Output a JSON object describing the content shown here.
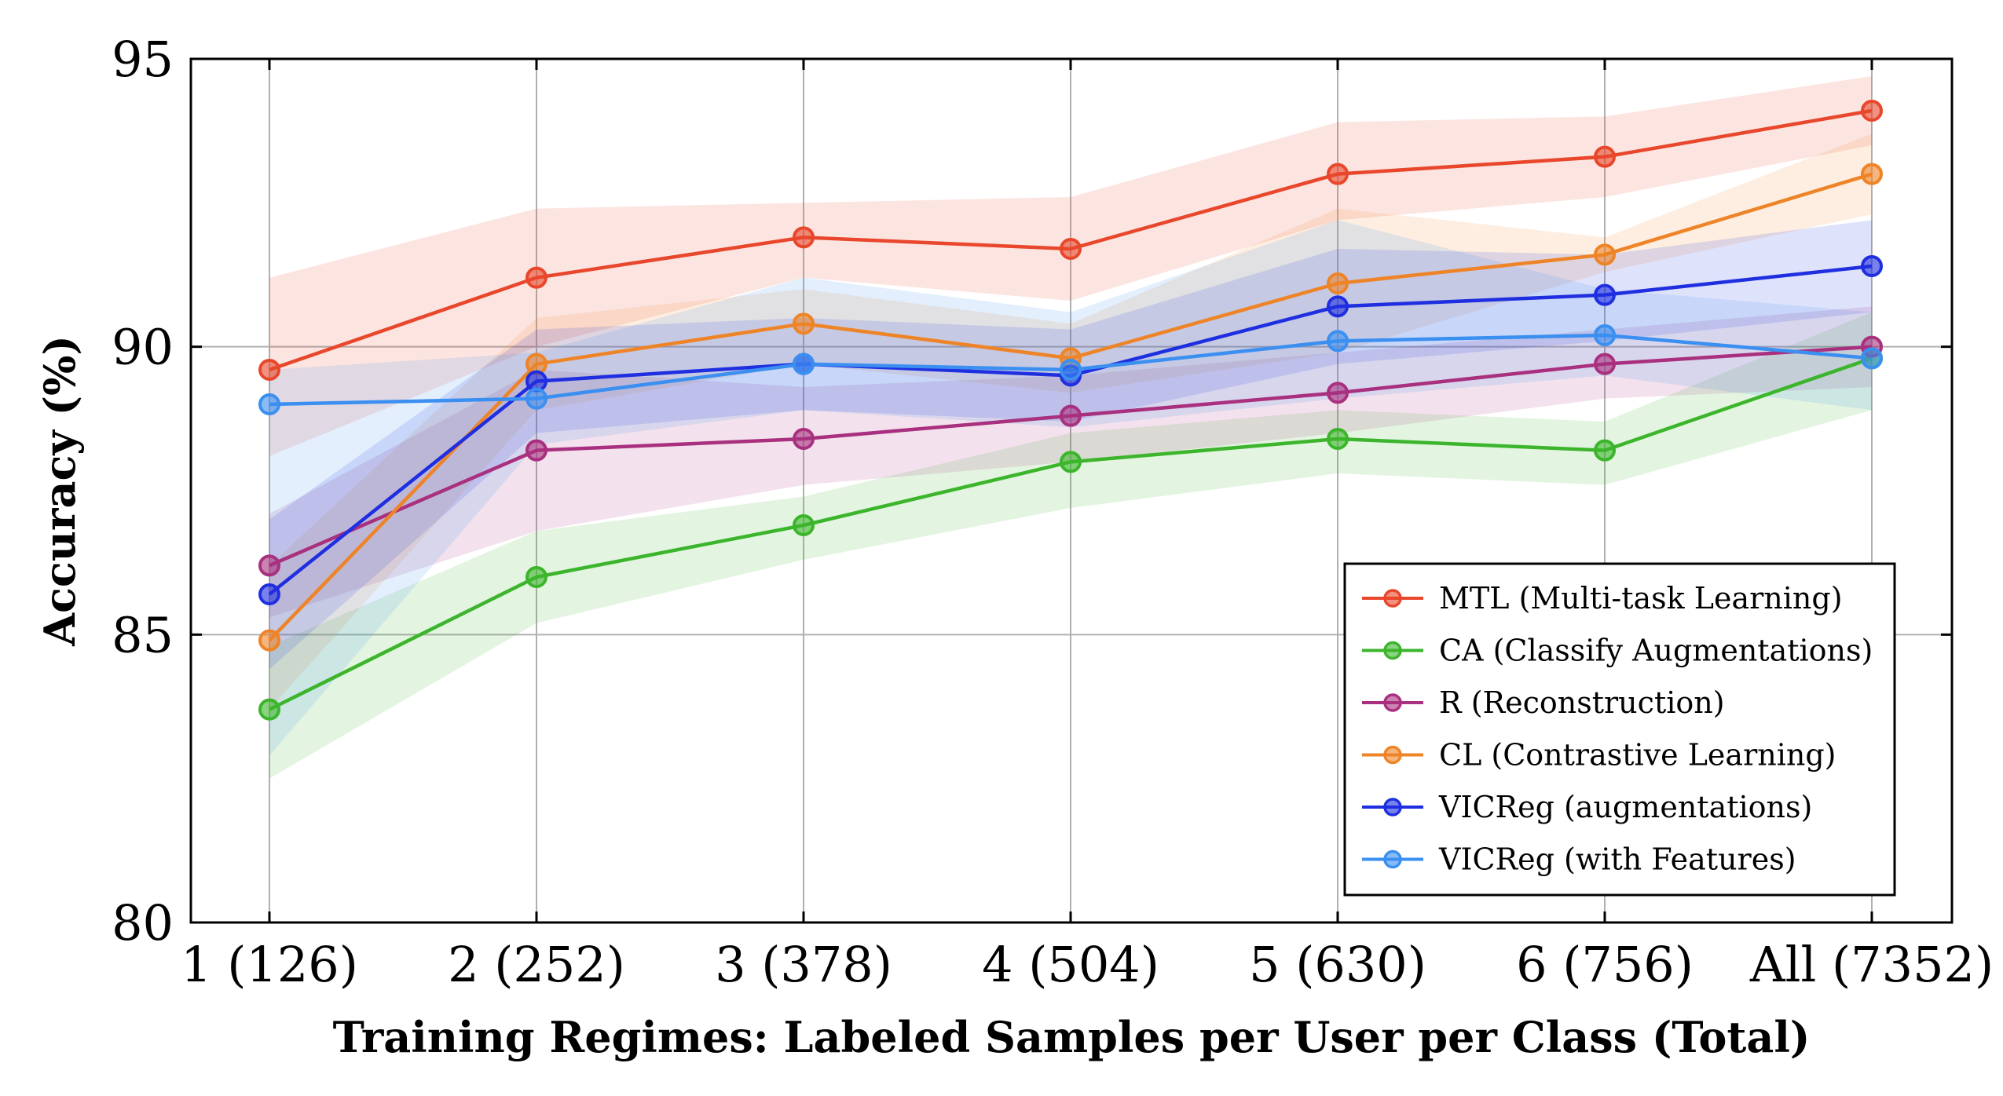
{
  "chart_data": {
    "type": "line",
    "title": "",
    "xlabel": "Training Regimes: Labeled Samples per User per Class (Total)",
    "ylabel": "Accuracy (%)",
    "categories": [
      "1 (126)",
      "2 (252)",
      "3 (378)",
      "4 (504)",
      "5 (630)",
      "6 (756)",
      "All (7352)"
    ],
    "ylim": [
      80,
      95
    ],
    "yticks": [
      80,
      85,
      90,
      95
    ],
    "grid": true,
    "legend_position": "lower-right",
    "series": [
      {
        "name": "MTL (Multi-task Learning)",
        "color": "#e8472c",
        "values": [
          89.6,
          91.2,
          91.9,
          91.7,
          93.0,
          93.3,
          94.1
        ],
        "lower": [
          88.1,
          90.0,
          91.2,
          90.8,
          92.2,
          92.6,
          93.5
        ],
        "upper": [
          91.2,
          92.4,
          92.5,
          92.6,
          93.9,
          94.0,
          94.7
        ]
      },
      {
        "name": "CA (Classify Augmentations)",
        "color": "#3cb52c",
        "values": [
          83.7,
          86.0,
          86.9,
          88.0,
          88.4,
          88.2,
          89.8
        ],
        "lower": [
          82.5,
          85.2,
          86.3,
          87.2,
          87.8,
          87.6,
          88.9
        ],
        "upper": [
          84.8,
          86.8,
          87.4,
          88.5,
          88.9,
          88.7,
          90.6
        ]
      },
      {
        "name": "R (Reconstruction)",
        "color": "#a8307e",
        "values": [
          86.2,
          88.2,
          88.4,
          88.8,
          89.2,
          89.7,
          90.0
        ],
        "lower": [
          85.3,
          86.8,
          87.6,
          88.0,
          88.5,
          89.1,
          89.3
        ],
        "upper": [
          87.1,
          89.6,
          89.3,
          89.5,
          89.9,
          90.3,
          90.7
        ]
      },
      {
        "name": "CL (Contrastive Learning)",
        "color": "#ee8427",
        "values": [
          84.9,
          89.7,
          90.4,
          89.8,
          91.1,
          91.6,
          93.0
        ],
        "lower": [
          83.7,
          88.9,
          89.7,
          89.2,
          89.9,
          91.3,
          92.3
        ],
        "upper": [
          86.2,
          90.5,
          91.0,
          90.4,
          92.4,
          91.9,
          93.7
        ]
      },
      {
        "name": "VICReg (augmentations)",
        "color": "#1f2fe0",
        "values": [
          85.7,
          89.4,
          89.7,
          89.5,
          90.7,
          90.9,
          91.4
        ],
        "lower": [
          84.4,
          88.5,
          88.9,
          88.7,
          89.7,
          90.1,
          90.6
        ],
        "upper": [
          87.0,
          90.3,
          90.5,
          90.3,
          91.7,
          91.6,
          92.2
        ]
      },
      {
        "name": "VICReg (with Features)",
        "color": "#3a8ff0",
        "values": [
          89.0,
          89.1,
          89.7,
          89.6,
          90.1,
          90.2,
          89.8
        ],
        "lower": [
          82.9,
          88.3,
          88.9,
          88.6,
          89.1,
          89.5,
          88.9
        ],
        "upper": [
          89.6,
          89.9,
          91.2,
          90.6,
          92.2,
          91.0,
          90.6
        ]
      }
    ]
  }
}
